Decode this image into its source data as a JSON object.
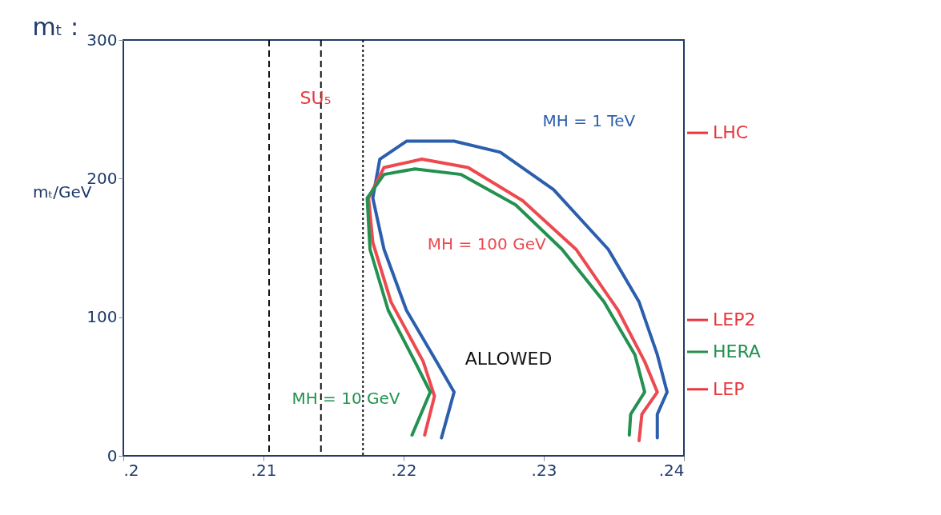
{
  "chart_data": {
    "type": "line",
    "title": "mₜ :",
    "ylabel": "mₜ/GeV",
    "xlim": [
      0.2,
      0.24
    ],
    "ylim": [
      0,
      300
    ],
    "xticks": [
      {
        "value": 0.2,
        "label": ".2"
      },
      {
        "value": 0.21,
        "label": ".21"
      },
      {
        "value": 0.22,
        "label": ".22"
      },
      {
        "value": 0.23,
        "label": ".23"
      },
      {
        "value": 0.24,
        "label": ".24"
      }
    ],
    "yticks": [
      0,
      100,
      200,
      300
    ],
    "grid": false,
    "marker": "none",
    "line_style": "solid",
    "series": [
      {
        "name": "MH = 1 TeV",
        "color": "#2b5fad",
        "x": [
          0.2227,
          0.2236,
          0.2224,
          0.2202,
          0.2186,
          0.2178,
          0.2183,
          0.2202,
          0.2236,
          0.2269,
          0.2307,
          0.2346,
          0.2368,
          0.2381,
          0.2388,
          0.2381,
          0.2381
        ],
        "values": [
          13,
          46,
          67,
          105,
          149,
          186,
          214,
          227,
          227,
          219,
          192,
          149,
          111,
          73,
          46,
          30,
          13
        ]
      },
      {
        "name": "MH = 100 GeV",
        "color": "#ec4a50",
        "x": [
          0.2215,
          0.2222,
          0.2214,
          0.2191,
          0.2178,
          0.2175,
          0.2186,
          0.2213,
          0.2246,
          0.2285,
          0.2323,
          0.2353,
          0.2372,
          0.2381,
          0.237,
          0.2368
        ],
        "values": [
          15,
          43,
          68,
          111,
          154,
          186,
          208,
          214,
          208,
          184,
          149,
          105,
          68,
          46,
          30,
          11
        ]
      },
      {
        "name": "MH = 10 GeV",
        "color": "#239150",
        "x": [
          0.2206,
          0.2219,
          0.2208,
          0.2189,
          0.2176,
          0.2174,
          0.2186,
          0.2208,
          0.2241,
          0.228,
          0.2313,
          0.2343,
          0.2365,
          0.2372,
          0.2362,
          0.2361
        ],
        "values": [
          15,
          46,
          68,
          105,
          149,
          186,
          203,
          207,
          203,
          181,
          149,
          111,
          73,
          46,
          30,
          15
        ]
      }
    ],
    "ref_lines": [
      {
        "axis": "x",
        "value": 0.2104,
        "color": "#111111",
        "line_style": "dashed"
      },
      {
        "axis": "x",
        "value": 0.2141,
        "color": "#111111",
        "line_style": "dashed"
      },
      {
        "axis": "x",
        "value": 0.2171,
        "color": "#111111",
        "line_style": "dotted"
      },
      {
        "axis": "y",
        "value": 233,
        "label": "LHC",
        "color": "#e8363c"
      },
      {
        "axis": "y",
        "value": 98,
        "label": "LEP2",
        "color": "#e8363c"
      },
      {
        "axis": "y",
        "value": 75,
        "label": "HERA",
        "color": "#239150"
      },
      {
        "axis": "y",
        "value": 48,
        "label": "LEP",
        "color": "#e8363c"
      }
    ],
    "annotations": [
      "SU₅",
      "ALLOWED"
    ]
  }
}
